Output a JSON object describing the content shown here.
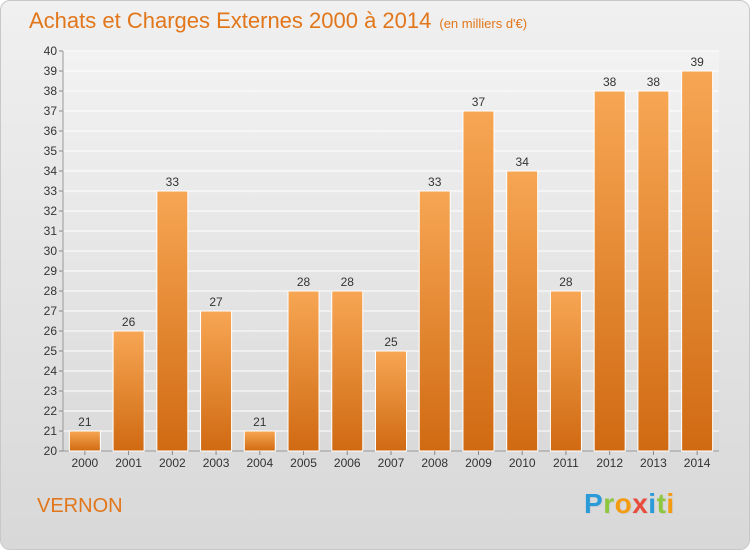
{
  "title": "Achats et Charges Externes 2000 à 2014",
  "subtitle": "(en milliers d'€)",
  "commune": "VERNON",
  "logo": {
    "text": "Proxiti",
    "letters": [
      {
        "ch": "P",
        "color": "#2a9ad8"
      },
      {
        "ch": "r",
        "color": "#8dc63f"
      },
      {
        "ch": "o",
        "color": "#f39c12"
      },
      {
        "ch": "x",
        "color": "#e74c3c"
      },
      {
        "ch": "i",
        "color": "#2a9ad8"
      },
      {
        "ch": "t",
        "color": "#8dc63f"
      },
      {
        "ch": "i",
        "color": "#f39c12"
      }
    ]
  },
  "colors": {
    "bar_top": "#f7a654",
    "bar_bottom": "#d06a12",
    "bar_edge": "#ffffff",
    "title": "#e2761a",
    "grid": "#ffffff",
    "text": "#333333"
  },
  "chart_data": {
    "type": "bar",
    "categories": [
      "2000",
      "2001",
      "2002",
      "2003",
      "2004",
      "2005",
      "2006",
      "2007",
      "2008",
      "2009",
      "2010",
      "2011",
      "2012",
      "2013",
      "2014"
    ],
    "values": [
      21,
      26,
      33,
      27,
      21,
      28,
      28,
      25,
      33,
      37,
      34,
      28,
      38,
      38,
      39
    ],
    "ylim": [
      20,
      40
    ],
    "yticks": [
      20,
      21,
      22,
      23,
      24,
      25,
      26,
      27,
      28,
      29,
      30,
      31,
      32,
      33,
      34,
      35,
      36,
      37,
      38,
      39,
      40
    ],
    "grid": true,
    "data_labels": true
  }
}
